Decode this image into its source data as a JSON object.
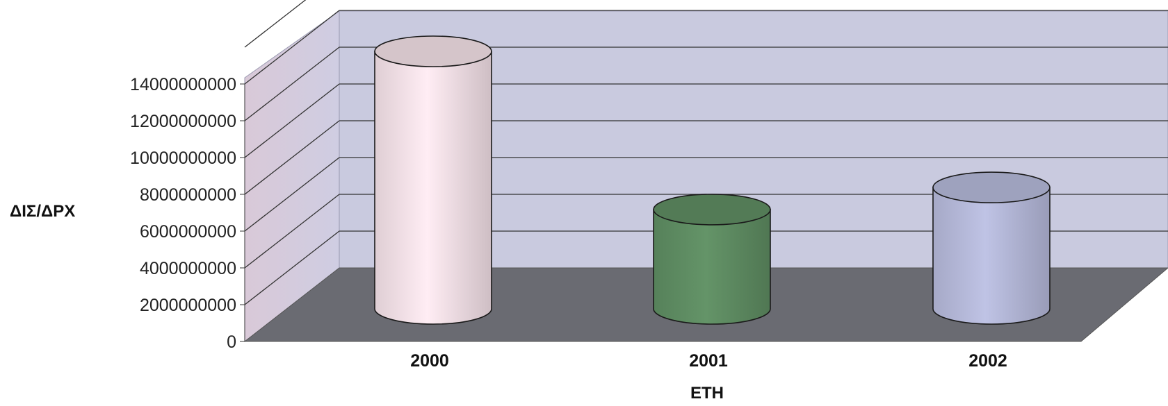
{
  "chart_data": {
    "type": "bar",
    "shape": "3d-cylinder",
    "title": "",
    "xlabel": "ΕΤΗ",
    "ylabel": "ΔΙΣ/ΔΡΧ",
    "categories": [
      "2000",
      "2001",
      "2002"
    ],
    "series": [
      {
        "values": [
          14000000000,
          5400000000,
          6600000000
        ]
      }
    ],
    "bar_colors": [
      "#f2e0e6",
      "#5e8c62",
      "#b4b8d8"
    ],
    "yticks": [
      0,
      2000000000,
      4000000000,
      6000000000,
      8000000000,
      10000000000,
      12000000000,
      14000000000
    ],
    "ylim": [
      0,
      14000000000
    ],
    "grid": true,
    "legend": "none",
    "colors": {
      "back_wall": "#c9cadf",
      "side_wall": "#d4d3e4",
      "floor": "#6a6b72",
      "gridline": "#333333"
    }
  }
}
